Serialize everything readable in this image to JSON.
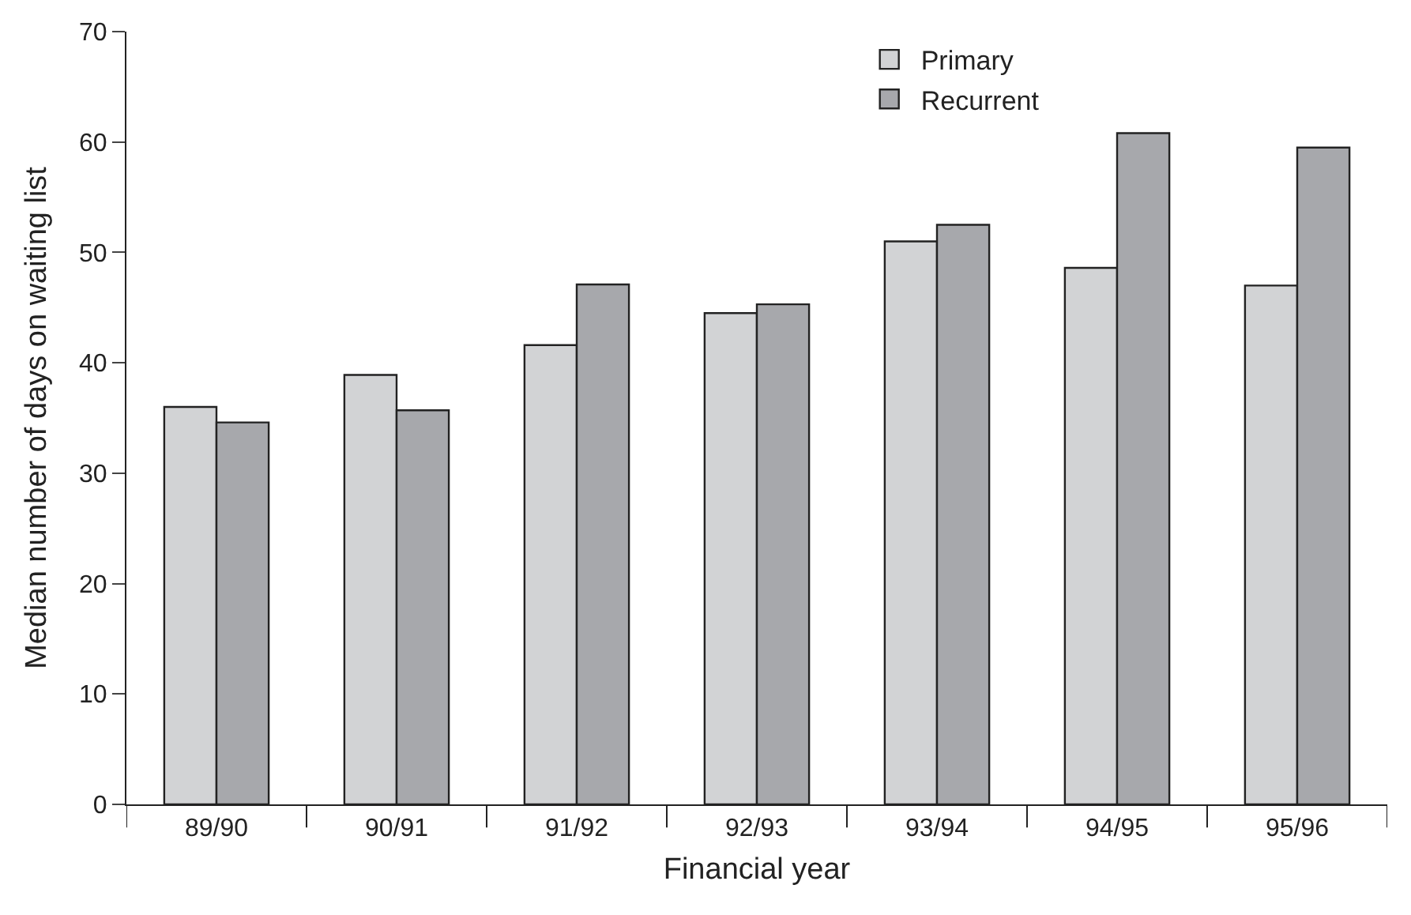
{
  "chart_data": {
    "type": "bar",
    "xlabel": "Financial year",
    "ylabel": "Median number of days on waiting list",
    "categories": [
      "89/90",
      "90/91",
      "91/92",
      "92/93",
      "93/94",
      "94/95",
      "95/96"
    ],
    "series": [
      {
        "name": "Primary",
        "color": "#d2d3d5",
        "values": [
          36.0,
          38.9,
          41.6,
          44.5,
          51.0,
          48.6,
          47.0
        ]
      },
      {
        "name": "Recurrent",
        "color": "#a7a8ac",
        "values": [
          34.6,
          35.7,
          47.1,
          45.3,
          52.5,
          60.8,
          59.5
        ]
      }
    ],
    "ylim": [
      0,
      70
    ],
    "yticks": [
      0,
      10,
      20,
      30,
      40,
      50,
      60,
      70
    ],
    "legend": "top right"
  }
}
